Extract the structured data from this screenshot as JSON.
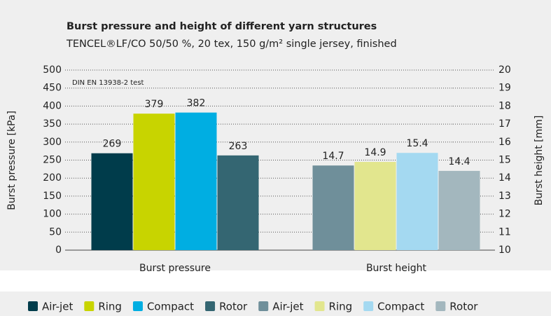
{
  "chart_data": {
    "type": "bar",
    "title": "Burst pressure and height of different yarn structures",
    "subtitle": "TENCEL®LF/CO 50/50 %, 20 tex, 150 g/m² single jersey, finished",
    "annotation": "DIN EN 13938-2 test",
    "ylabel": "Burst pressure [kPa]",
    "y2label": "Burst height [mm]",
    "categories": [
      "Burst pressure",
      "Burst height"
    ],
    "series": [
      {
        "name": "Air-jet",
        "color": "#003c4b",
        "values": [
          269,
          null
        ]
      },
      {
        "name": "Ring",
        "color": "#c8d400",
        "values": [
          379,
          null
        ]
      },
      {
        "name": "Compact",
        "color": "#00aee2",
        "values": [
          382,
          null
        ]
      },
      {
        "name": "Rotor",
        "color": "#346672",
        "values": [
          263,
          null
        ]
      },
      {
        "name": "Air-jet",
        "color": "#6f8f9a",
        "axis": "y2",
        "values": [
          null,
          14.7
        ]
      },
      {
        "name": "Ring",
        "color": "#e2e68e",
        "axis": "y2",
        "values": [
          null,
          14.9
        ]
      },
      {
        "name": "Compact",
        "color": "#a4d9f1",
        "axis": "y2",
        "values": [
          null,
          15.4
        ]
      },
      {
        "name": "Rotor",
        "color": "#a3b7be",
        "axis": "y2",
        "values": [
          null,
          14.4
        ]
      }
    ],
    "ylim": [
      0,
      500
    ],
    "yticks": [
      0,
      50,
      100,
      150,
      200,
      250,
      300,
      350,
      400,
      450,
      500
    ],
    "y2lim": [
      10,
      20
    ],
    "y2ticks": [
      10,
      11,
      12,
      13,
      14,
      15,
      16,
      17,
      18,
      19,
      20
    ],
    "grid": true
  }
}
